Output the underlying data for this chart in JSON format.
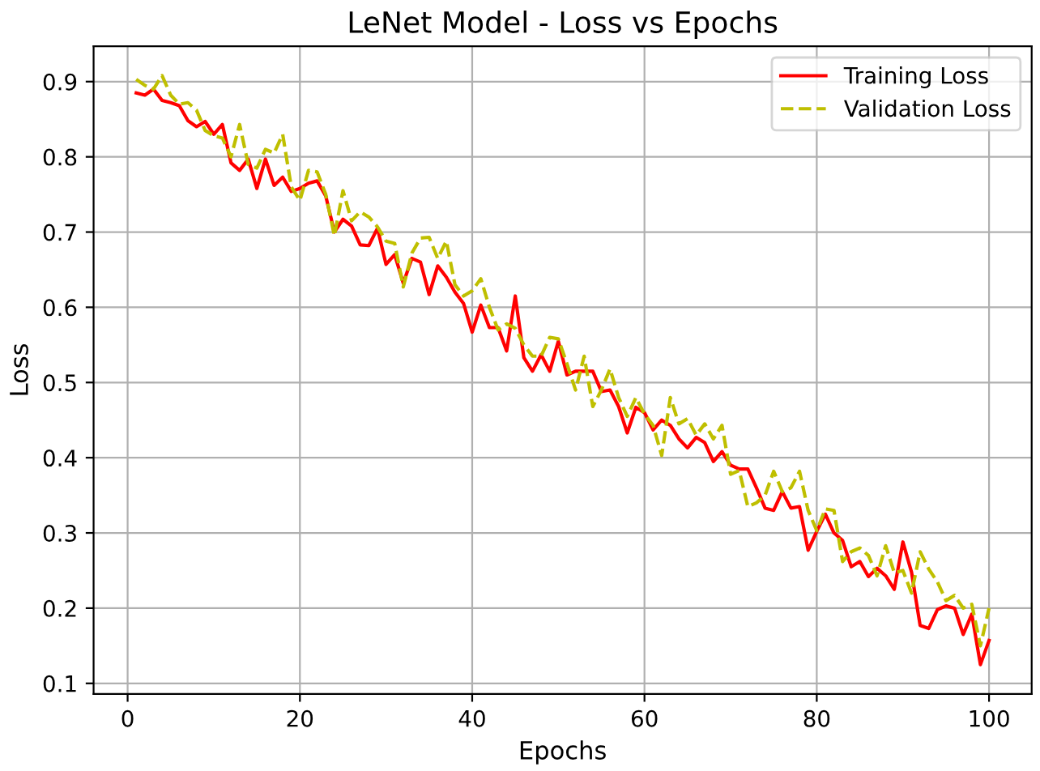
{
  "chart_data": {
    "type": "line",
    "title": "LeNet Model - Loss vs Epochs",
    "xlabel": "Epochs",
    "ylabel": "Loss",
    "x": [
      1,
      2,
      3,
      4,
      5,
      6,
      7,
      8,
      9,
      10,
      11,
      12,
      13,
      14,
      15,
      16,
      17,
      18,
      19,
      20,
      21,
      22,
      23,
      24,
      25,
      26,
      27,
      28,
      29,
      30,
      31,
      32,
      33,
      34,
      35,
      36,
      37,
      38,
      39,
      40,
      41,
      42,
      43,
      44,
      45,
      46,
      47,
      48,
      49,
      50,
      51,
      52,
      53,
      54,
      55,
      56,
      57,
      58,
      59,
      60,
      61,
      62,
      63,
      64,
      65,
      66,
      67,
      68,
      69,
      70,
      71,
      72,
      73,
      74,
      75,
      76,
      77,
      78,
      79,
      80,
      81,
      82,
      83,
      84,
      85,
      86,
      87,
      88,
      89,
      90,
      91,
      92,
      93,
      94,
      95,
      96,
      97,
      98,
      99,
      100
    ],
    "series": [
      {
        "name": "Training Loss",
        "color": "#ff0000",
        "line_style": "solid",
        "values": [
          0.885,
          0.882,
          0.89,
          0.875,
          0.872,
          0.868,
          0.848,
          0.84,
          0.847,
          0.83,
          0.843,
          0.792,
          0.782,
          0.797,
          0.758,
          0.797,
          0.762,
          0.773,
          0.754,
          0.758,
          0.765,
          0.768,
          0.748,
          0.7,
          0.717,
          0.708,
          0.683,
          0.682,
          0.705,
          0.657,
          0.67,
          0.632,
          0.665,
          0.66,
          0.617,
          0.655,
          0.64,
          0.62,
          0.605,
          0.567,
          0.603,
          0.573,
          0.573,
          0.542,
          0.615,
          0.533,
          0.515,
          0.537,
          0.515,
          0.555,
          0.51,
          0.515,
          0.515,
          0.515,
          0.488,
          0.49,
          0.468,
          0.433,
          0.467,
          0.46,
          0.437,
          0.45,
          0.443,
          0.425,
          0.413,
          0.427,
          0.42,
          0.395,
          0.408,
          0.39,
          0.385,
          0.385,
          0.36,
          0.333,
          0.33,
          0.355,
          0.333,
          0.335,
          0.277,
          0.302,
          0.325,
          0.3,
          0.29,
          0.255,
          0.262,
          0.242,
          0.253,
          0.243,
          0.225,
          0.288,
          0.248,
          0.177,
          0.173,
          0.198,
          0.203,
          0.2,
          0.165,
          0.192,
          0.125,
          0.157
        ]
      },
      {
        "name": "Validation Loss",
        "color": "#bfbf00",
        "line_style": "dashed",
        "values": [
          0.903,
          0.895,
          0.89,
          0.908,
          0.882,
          0.87,
          0.872,
          0.862,
          0.835,
          0.828,
          0.825,
          0.8,
          0.843,
          0.79,
          0.785,
          0.81,
          0.805,
          0.83,
          0.76,
          0.742,
          0.782,
          0.78,
          0.75,
          0.695,
          0.755,
          0.715,
          0.727,
          0.72,
          0.707,
          0.688,
          0.685,
          0.627,
          0.672,
          0.692,
          0.693,
          0.665,
          0.688,
          0.63,
          0.615,
          0.622,
          0.638,
          0.6,
          0.57,
          0.578,
          0.572,
          0.55,
          0.535,
          0.535,
          0.56,
          0.558,
          0.525,
          0.49,
          0.535,
          0.468,
          0.49,
          0.518,
          0.48,
          0.455,
          0.48,
          0.458,
          0.443,
          0.403,
          0.48,
          0.445,
          0.452,
          0.43,
          0.445,
          0.425,
          0.443,
          0.378,
          0.383,
          0.335,
          0.34,
          0.35,
          0.382,
          0.355,
          0.36,
          0.382,
          0.33,
          0.303,
          0.332,
          0.33,
          0.262,
          0.275,
          0.28,
          0.27,
          0.243,
          0.283,
          0.247,
          0.25,
          0.22,
          0.275,
          0.252,
          0.235,
          0.21,
          0.217,
          0.2,
          0.205,
          0.15,
          0.2
        ]
      }
    ],
    "xlim": [
      -3.95,
      104.95
    ],
    "ylim": [
      0.086,
      0.947
    ],
    "xticks": [
      0,
      20,
      40,
      60,
      80,
      100
    ],
    "yticks": [
      0.1,
      0.2,
      0.3,
      0.4,
      0.5,
      0.6,
      0.7,
      0.8,
      0.9
    ],
    "grid": true,
    "legend": "top right",
    "marker": "none"
  }
}
